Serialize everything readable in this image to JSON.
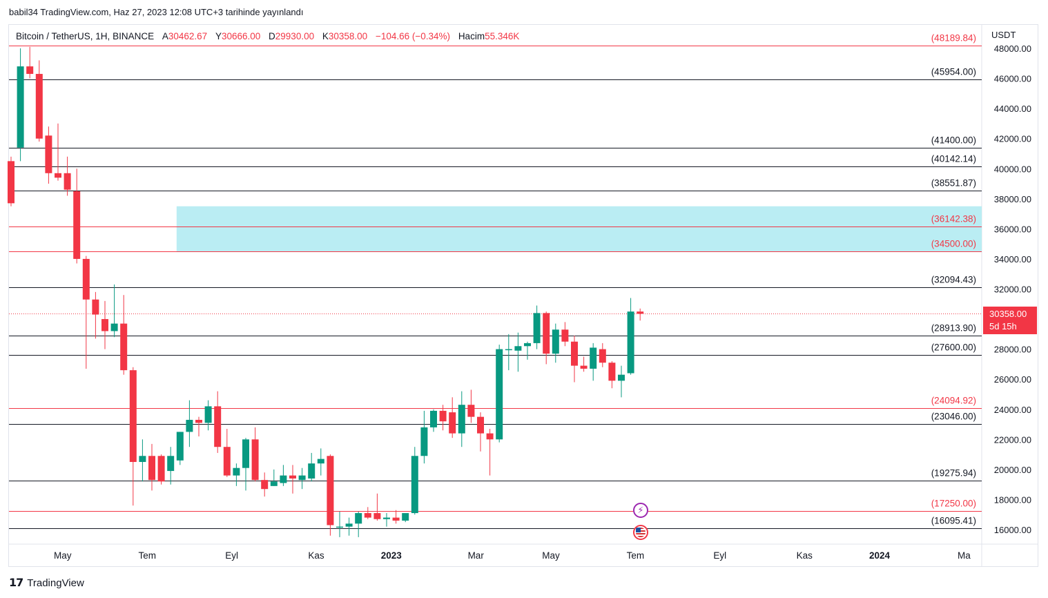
{
  "header": {
    "published": "babil34 TradingView.com, Haz 27, 2023 12:08 UTC+3 tarihinde yayınlandı"
  },
  "legend": {
    "symbol": "Bitcoin / TetherUS, 1H, BINANCE",
    "open_label": "A",
    "open_value": "30462.67",
    "high_label": "Y",
    "high_value": "30666.00",
    "low_label": "D",
    "low_value": "29930.00",
    "close_label": "K",
    "close_value": "30358.00",
    "change": "−104.66 (−0.34%)",
    "volume_label": "Hacim",
    "volume_value": "55.346K"
  },
  "axis": {
    "currency": "USDT"
  },
  "current_price": {
    "price": "30358.00",
    "countdown": "5d 15h"
  },
  "brand": {
    "name": "TradingView"
  },
  "colors": {
    "up": "#089981",
    "down": "#f23645",
    "zone": "#b2ebf2",
    "line": "#131722",
    "red_line": "#f23645"
  },
  "events": {
    "lightning_icon": "⚡",
    "flag_icon": "us-flag-icon"
  },
  "chart_data": {
    "type": "candlestick",
    "ylim": [
      15000,
      48500
    ],
    "y_ticks": [
      "16000.00",
      "18000.00",
      "20000.00",
      "22000.00",
      "24000.00",
      "26000.00",
      "28000.00",
      "30000.00",
      "32000.00",
      "34000.00",
      "36000.00",
      "38000.00",
      "40000.00",
      "42000.00",
      "44000.00",
      "46000.00",
      "48000.00"
    ],
    "x_labels": [
      {
        "label": "May",
        "w": 5.5
      },
      {
        "label": "Tem",
        "w": 14.5
      },
      {
        "label": "Eyl",
        "w": 23.5
      },
      {
        "label": "Kas",
        "w": 32.5
      },
      {
        "label": "2023",
        "w": 40.5,
        "bold": true
      },
      {
        "label": "Mar",
        "w": 49.5
      },
      {
        "label": "May",
        "w": 57.5
      },
      {
        "label": "Tem",
        "w": 66.5
      },
      {
        "label": "Eyl",
        "w": 75.5
      },
      {
        "label": "Kas",
        "w": 84.5
      },
      {
        "label": "2024",
        "w": 92.5,
        "bold": true
      },
      {
        "label": "Ma",
        "w": 101.5
      }
    ],
    "levels": [
      {
        "price": 48189.84,
        "label": "(48189.84)",
        "style": "red"
      },
      {
        "price": 45954.0,
        "label": "(45954.00)",
        "style": "black"
      },
      {
        "price": 41400.0,
        "label": "(41400.00)",
        "style": "black"
      },
      {
        "price": 40142.14,
        "label": "(40142.14)",
        "style": "black"
      },
      {
        "price": 38551.87,
        "label": "(38551.87)",
        "style": "black"
      },
      {
        "price": 36142.38,
        "label": "(36142.38)",
        "style": "red"
      },
      {
        "price": 34500.0,
        "label": "(34500.00)",
        "style": "red"
      },
      {
        "price": 32094.43,
        "label": "(32094.43)",
        "style": "black"
      },
      {
        "price": 28913.9,
        "label": "(28913.90)",
        "style": "black"
      },
      {
        "price": 27600.0,
        "label": "(27600.00)",
        "style": "black"
      },
      {
        "price": 24094.92,
        "label": "(24094.92)",
        "style": "red"
      },
      {
        "price": 23046.0,
        "label": "(23046.00)",
        "style": "black"
      },
      {
        "price": 19275.94,
        "label": "(19275.94)",
        "style": "black"
      },
      {
        "price": 17250.0,
        "label": "(17250.00)",
        "style": "red"
      },
      {
        "price": 16095.41,
        "label": "(16095.41)",
        "style": "black"
      }
    ],
    "zone": {
      "top": 37500,
      "bottom": 34500,
      "start_week": 18
    },
    "last_price": 30358.0,
    "series": [
      {
        "o": 40500,
        "h": 40800,
        "l": 37500,
        "c": 37700
      },
      {
        "o": 41400,
        "h": 48000,
        "l": 40500,
        "c": 46800
      },
      {
        "o": 46800,
        "h": 48100,
        "l": 46000,
        "c": 46300
      },
      {
        "o": 46300,
        "h": 47200,
        "l": 41800,
        "c": 42000
      },
      {
        "o": 42200,
        "h": 42800,
        "l": 39000,
        "c": 39700
      },
      {
        "o": 39700,
        "h": 43000,
        "l": 39200,
        "c": 39400
      },
      {
        "o": 39700,
        "h": 40800,
        "l": 38200,
        "c": 38600
      },
      {
        "o": 38500,
        "h": 40000,
        "l": 33700,
        "c": 34000
      },
      {
        "o": 34000,
        "h": 34200,
        "l": 26700,
        "c": 31300
      },
      {
        "o": 31300,
        "h": 31800,
        "l": 28700,
        "c": 30300
      },
      {
        "o": 30000,
        "h": 31200,
        "l": 28000,
        "c": 29200
      },
      {
        "o": 29200,
        "h": 32300,
        "l": 28800,
        "c": 29700
      },
      {
        "o": 29700,
        "h": 31600,
        "l": 26300,
        "c": 26600
      },
      {
        "o": 26600,
        "h": 26800,
        "l": 17600,
        "c": 20500
      },
      {
        "o": 20500,
        "h": 22000,
        "l": 19200,
        "c": 20900
      },
      {
        "o": 20900,
        "h": 21700,
        "l": 18600,
        "c": 19300
      },
      {
        "o": 20900,
        "h": 21000,
        "l": 19000,
        "c": 19200
      },
      {
        "o": 19900,
        "h": 21500,
        "l": 19000,
        "c": 20900
      },
      {
        "o": 20600,
        "h": 22500,
        "l": 20300,
        "c": 22500
      },
      {
        "o": 22500,
        "h": 24600,
        "l": 21500,
        "c": 23300
      },
      {
        "o": 23300,
        "h": 23500,
        "l": 22200,
        "c": 23100
      },
      {
        "o": 23100,
        "h": 24600,
        "l": 22600,
        "c": 24200
      },
      {
        "o": 24200,
        "h": 25200,
        "l": 21100,
        "c": 21500
      },
      {
        "o": 21500,
        "h": 22700,
        "l": 19500,
        "c": 19600
      },
      {
        "o": 19600,
        "h": 20400,
        "l": 18900,
        "c": 20100
      },
      {
        "o": 20100,
        "h": 22100,
        "l": 18600,
        "c": 22000
      },
      {
        "o": 22000,
        "h": 22800,
        "l": 19200,
        "c": 19300
      },
      {
        "o": 19300,
        "h": 19800,
        "l": 18200,
        "c": 18700
      },
      {
        "o": 18900,
        "h": 20000,
        "l": 18900,
        "c": 19200
      },
      {
        "o": 19100,
        "h": 20300,
        "l": 18900,
        "c": 19600
      },
      {
        "o": 19600,
        "h": 20300,
        "l": 18400,
        "c": 19400
      },
      {
        "o": 19300,
        "h": 20100,
        "l": 18700,
        "c": 19600
      },
      {
        "o": 19400,
        "h": 21100,
        "l": 19200,
        "c": 20400
      },
      {
        "o": 20400,
        "h": 21400,
        "l": 19600,
        "c": 20700
      },
      {
        "o": 20900,
        "h": 21000,
        "l": 15600,
        "c": 16300
      },
      {
        "o": 16200,
        "h": 17200,
        "l": 15500,
        "c": 16200
      },
      {
        "o": 16200,
        "h": 16800,
        "l": 15600,
        "c": 16400
      },
      {
        "o": 16400,
        "h": 17200,
        "l": 15500,
        "c": 17100
      },
      {
        "o": 17100,
        "h": 17500,
        "l": 16700,
        "c": 16800
      },
      {
        "o": 17100,
        "h": 18400,
        "l": 16600,
        "c": 16700
      },
      {
        "o": 16700,
        "h": 17100,
        "l": 16200,
        "c": 16800
      },
      {
        "o": 16800,
        "h": 17300,
        "l": 16400,
        "c": 16600
      },
      {
        "o": 16600,
        "h": 17000,
        "l": 16500,
        "c": 17100
      },
      {
        "o": 17100,
        "h": 21500,
        "l": 17000,
        "c": 20900
      },
      {
        "o": 20900,
        "h": 23900,
        "l": 20400,
        "c": 22800
      },
      {
        "o": 22800,
        "h": 24000,
        "l": 22500,
        "c": 23900
      },
      {
        "o": 23900,
        "h": 24300,
        "l": 22600,
        "c": 23200
      },
      {
        "o": 23800,
        "h": 24800,
        "l": 22100,
        "c": 22400
      },
      {
        "o": 22400,
        "h": 25200,
        "l": 21500,
        "c": 24300
      },
      {
        "o": 24300,
        "h": 25300,
        "l": 23100,
        "c": 23500
      },
      {
        "o": 23500,
        "h": 23800,
        "l": 21200,
        "c": 22400
      },
      {
        "o": 22400,
        "h": 22700,
        "l": 19600,
        "c": 22000
      },
      {
        "o": 22000,
        "h": 28300,
        "l": 21800,
        "c": 28000
      },
      {
        "o": 28000,
        "h": 29000,
        "l": 26600,
        "c": 28000
      },
      {
        "o": 27900,
        "h": 29100,
        "l": 26500,
        "c": 28200
      },
      {
        "o": 28200,
        "h": 28500,
        "l": 27300,
        "c": 28400
      },
      {
        "o": 28400,
        "h": 30900,
        "l": 28000,
        "c": 30400
      },
      {
        "o": 30400,
        "h": 30500,
        "l": 27000,
        "c": 27700
      },
      {
        "o": 27700,
        "h": 29700,
        "l": 27100,
        "c": 29300
      },
      {
        "o": 29300,
        "h": 29800,
        "l": 28200,
        "c": 28500
      },
      {
        "o": 28500,
        "h": 28900,
        "l": 25800,
        "c": 26900
      },
      {
        "o": 26900,
        "h": 27500,
        "l": 26500,
        "c": 26700
      },
      {
        "o": 26700,
        "h": 28400,
        "l": 25900,
        "c": 28100
      },
      {
        "o": 28000,
        "h": 28400,
        "l": 26800,
        "c": 27100
      },
      {
        "o": 27100,
        "h": 27200,
        "l": 25400,
        "c": 25900
      },
      {
        "o": 25900,
        "h": 26900,
        "l": 24800,
        "c": 26300
      },
      {
        "o": 26400,
        "h": 31400,
        "l": 26300,
        "c": 30500
      },
      {
        "o": 30500,
        "h": 30700,
        "l": 29900,
        "c": 30358
      }
    ]
  }
}
